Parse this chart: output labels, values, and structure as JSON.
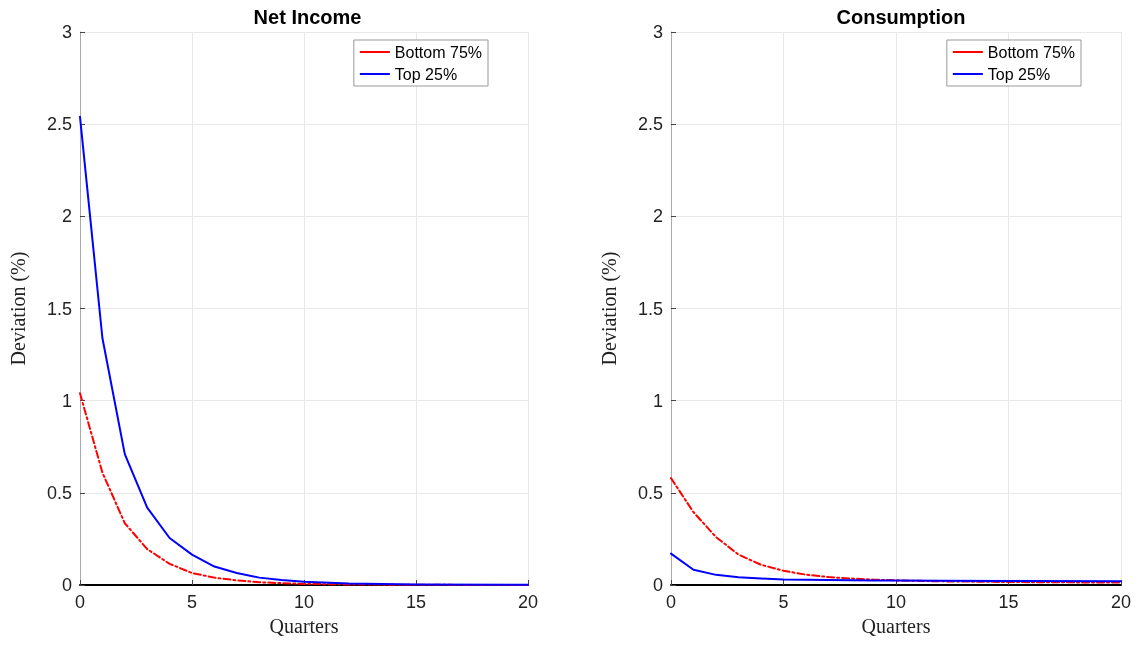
{
  "chart_data": [
    {
      "type": "line",
      "title": "Net Income",
      "xlabel": "Quarters",
      "ylabel": "Deviation (%)",
      "xlim": [
        0,
        20
      ],
      "xticks": [
        0,
        5,
        10,
        15,
        20
      ],
      "ylim": [
        0,
        3
      ],
      "yticks": [
        0,
        0.5,
        1,
        1.5,
        2,
        2.5,
        3
      ],
      "grid": true,
      "legend": "top right",
      "marker": "none",
      "x": [
        0,
        1,
        2,
        3,
        4,
        5,
        6,
        7,
        8,
        9,
        10,
        12,
        15,
        20
      ],
      "series": [
        {
          "name": "Bottom 75%",
          "color": "#ff0000",
          "line_style": "dashed",
          "values": [
            1.04,
            0.61,
            0.335,
            0.195,
            0.115,
            0.065,
            0.04,
            0.025,
            0.015,
            0.01,
            0.006,
            0.003,
            0.001,
            0
          ]
        },
        {
          "name": "Top 25%",
          "color": "#0000ff",
          "line_style": "solid",
          "values": [
            2.54,
            1.34,
            0.71,
            0.42,
            0.255,
            0.165,
            0.1,
            0.065,
            0.04,
            0.027,
            0.018,
            0.008,
            0.003,
            0.001
          ]
        }
      ]
    },
    {
      "type": "line",
      "title": "Consumption",
      "xlabel": "Quarters",
      "ylabel": "Deviation (%)",
      "xlim": [
        0,
        20
      ],
      "xticks": [
        0,
        5,
        10,
        15,
        20
      ],
      "ylim": [
        0,
        3
      ],
      "yticks": [
        0,
        0.5,
        1,
        1.5,
        2,
        2.5,
        3
      ],
      "grid": true,
      "legend": "top right",
      "marker": "none",
      "x": [
        0,
        1,
        2,
        3,
        4,
        5,
        6,
        7,
        8,
        9,
        10,
        12,
        15,
        20
      ],
      "series": [
        {
          "name": "Bottom 75%",
          "color": "#ff0000",
          "line_style": "dashed",
          "values": [
            0.58,
            0.395,
            0.26,
            0.165,
            0.11,
            0.077,
            0.056,
            0.043,
            0.035,
            0.029,
            0.025,
            0.02,
            0.016,
            0.013
          ]
        },
        {
          "name": "Top 25%",
          "color": "#0000ff",
          "line_style": "solid",
          "values": [
            0.17,
            0.083,
            0.055,
            0.042,
            0.035,
            0.03,
            0.028,
            0.027,
            0.026,
            0.025,
            0.025,
            0.023,
            0.022,
            0.02
          ]
        }
      ]
    }
  ]
}
